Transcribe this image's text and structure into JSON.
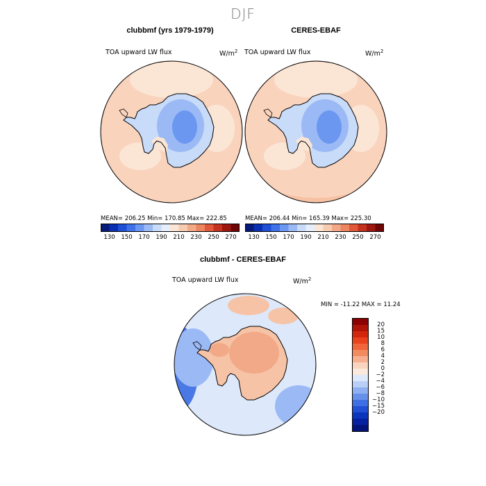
{
  "season": "DJF",
  "panels": [
    {
      "title": "clubbmf (yrs 1979-1979)",
      "field": "TOA upward LW flux",
      "units_base": "W/m",
      "units_exp": "2",
      "stats": "MEAN= 206.25   Min= 170.85   Max= 222.85"
    },
    {
      "title": "CERES-EBAF",
      "field": "TOA upward LW flux",
      "units_base": "W/m",
      "units_exp": "2",
      "stats": "MEAN= 206.44   Min= 165.39   Max= 225.30"
    }
  ],
  "diff_panel": {
    "title": "clubbmf - CERES-EBAF",
    "field": "TOA upward LW flux",
    "units_base": "W/m",
    "units_exp": "2",
    "stats": "MIN = -11.22 MAX =  11.24"
  },
  "colorbar_top": {
    "tick_labels": [
      "130",
      "150",
      "170",
      "190",
      "210",
      "230",
      "250",
      "270"
    ],
    "colors": [
      "#061a7a",
      "#0a2fb0",
      "#1f4fd6",
      "#3f72e8",
      "#6b97f0",
      "#9bbaf5",
      "#c8dbf9",
      "#e6eefc",
      "#fbe6d6",
      "#f7cbb0",
      "#f2a987",
      "#ec8560",
      "#e0573a",
      "#c4321f",
      "#9c1710",
      "#6e0606"
    ]
  },
  "colorbar_diff": {
    "tick_labels": [
      "20",
      "15",
      "10",
      "8",
      "6",
      "4",
      "2",
      "0",
      "−2",
      "−4",
      "−6",
      "−8",
      "−10",
      "−15",
      "−20"
    ],
    "colors": [
      "#8b0000",
      "#b01408",
      "#d2260f",
      "#e8431c",
      "#f0663a",
      "#f38b61",
      "#f6b08f",
      "#f9d5bf",
      "#fbe9dd",
      "#dde8fa",
      "#b9cff6",
      "#8eb0f0",
      "#6690ea",
      "#3f6fe3",
      "#2150d4",
      "#0c35bd",
      "#0621a0",
      "#04137a"
    ]
  },
  "map_colors": {
    "ocean_light": "#fad3bd",
    "ocean_med": "#f7c1a4",
    "ocean_pale": "#fbe6d6",
    "ice_light": "#c8dbf9",
    "ice_med": "#9bbaf5",
    "ice_dark": "#6b97f0",
    "diff_base": "#dde8fa",
    "diff_blue": "#9bbaf5",
    "diff_dark": "#4a78e4",
    "diff_red": "#f2a987",
    "diff_orange": "#f6c3a6"
  }
}
